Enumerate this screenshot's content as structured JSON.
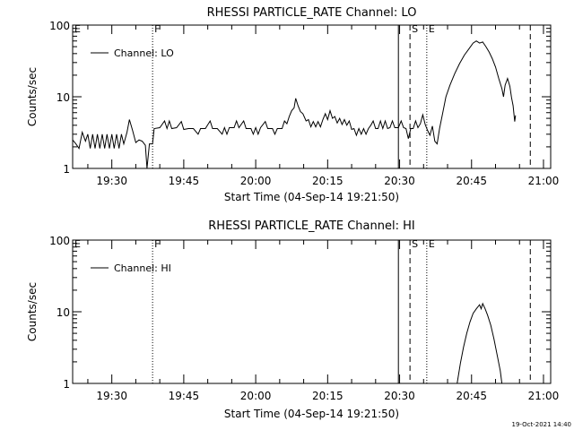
{
  "timestamp": "19-Oct-2021 14:40",
  "chart_data": [
    {
      "type": "line",
      "title": "RHESSI PARTICLE_RATE Channel: LO",
      "xlabel": "Start Time (04-Sep-14 19:21:50)",
      "ylabel": "Counts/sec",
      "y_scale": "log",
      "ylim": [
        1,
        100
      ],
      "y_ticks": [
        "1",
        "10",
        "100"
      ],
      "x_range": [
        "19:21:50",
        "21:01:30"
      ],
      "x_ticks": [
        "19:30",
        "19:45",
        "20:00",
        "20:15",
        "20:30",
        "20:45",
        "21:00"
      ],
      "legend": {
        "label": "Channel: LO",
        "position": "top-left"
      },
      "markers": [
        {
          "label": "E",
          "time": "19:21:50",
          "style": "none"
        },
        {
          "label": "F",
          "time": "19:38:30",
          "style": "dotted"
        },
        {
          "label": "",
          "time": "20:29:45",
          "style": "solid"
        },
        {
          "label": "S",
          "time": "20:32:10",
          "style": "dashed"
        },
        {
          "label": "E",
          "time": "20:35:40",
          "style": "dotted"
        },
        {
          "label": "",
          "time": "20:57:15",
          "style": "dashed"
        }
      ],
      "series": [
        {
          "name": "Channel: LO",
          "points": [
            [
              "19:21:50",
              2.5
            ],
            [
              "19:22:30",
              2.2
            ],
            [
              "19:23:10",
              1.9
            ],
            [
              "19:23:50",
              3.2
            ],
            [
              "19:24:30",
              2.4
            ],
            [
              "19:25:00",
              3.0
            ],
            [
              "19:25:30",
              1.9
            ],
            [
              "19:26:00",
              3.0
            ],
            [
              "19:26:30",
              1.9
            ],
            [
              "19:27:00",
              3.0
            ],
            [
              "19:27:30",
              1.9
            ],
            [
              "19:28:00",
              3.0
            ],
            [
              "19:28:30",
              1.9
            ],
            [
              "19:29:00",
              3.0
            ],
            [
              "19:29:30",
              1.9
            ],
            [
              "19:30:00",
              3.0
            ],
            [
              "19:30:30",
              1.9
            ],
            [
              "19:31:00",
              3.0
            ],
            [
              "19:31:30",
              1.9
            ],
            [
              "19:32:00",
              3.0
            ],
            [
              "19:32:30",
              2.2
            ],
            [
              "19:33:10",
              3.2
            ],
            [
              "19:33:40",
              4.8
            ],
            [
              "19:34:20",
              3.4
            ],
            [
              "19:35:00",
              2.3
            ],
            [
              "19:35:40",
              2.5
            ],
            [
              "19:36:20",
              2.4
            ],
            [
              "19:37:00",
              2.1
            ],
            [
              "19:37:20",
              1.0
            ],
            [
              "19:37:50",
              2.2
            ],
            [
              "19:38:30",
              2.2
            ],
            [
              "19:38:50",
              3.6
            ],
            [
              "19:40:00",
              3.7
            ],
            [
              "19:41:00",
              4.6
            ],
            [
              "19:41:30",
              3.6
            ],
            [
              "19:42:00",
              4.6
            ],
            [
              "19:42:30",
              3.6
            ],
            [
              "19:43:30",
              3.7
            ],
            [
              "19:44:30",
              4.5
            ],
            [
              "19:45:00",
              3.5
            ],
            [
              "19:46:00",
              3.6
            ],
            [
              "19:47:00",
              3.6
            ],
            [
              "19:48:00",
              3.0
            ],
            [
              "19:48:30",
              3.6
            ],
            [
              "19:49:30",
              3.6
            ],
            [
              "19:50:30",
              4.6
            ],
            [
              "19:51:00",
              3.6
            ],
            [
              "19:52:00",
              3.6
            ],
            [
              "19:53:00",
              3.0
            ],
            [
              "19:53:30",
              3.7
            ],
            [
              "19:54:00",
              3.0
            ],
            [
              "19:54:30",
              3.7
            ],
            [
              "19:55:30",
              3.7
            ],
            [
              "19:56:00",
              4.6
            ],
            [
              "19:56:30",
              3.7
            ],
            [
              "19:57:30",
              4.6
            ],
            [
              "19:58:00",
              3.6
            ],
            [
              "19:59:00",
              3.6
            ],
            [
              "19:59:30",
              3.0
            ],
            [
              "20:00:00",
              3.7
            ],
            [
              "20:00:30",
              3.0
            ],
            [
              "20:01:00",
              3.7
            ],
            [
              "20:02:00",
              4.5
            ],
            [
              "20:02:30",
              3.6
            ],
            [
              "20:03:30",
              3.6
            ],
            [
              "20:04:00",
              3.0
            ],
            [
              "20:04:30",
              3.6
            ],
            [
              "20:05:30",
              3.6
            ],
            [
              "20:06:00",
              4.6
            ],
            [
              "20:06:30",
              4.2
            ],
            [
              "20:07:00",
              5.3
            ],
            [
              "20:07:30",
              6.4
            ],
            [
              "20:08:00",
              7.0
            ],
            [
              "20:08:20",
              9.5
            ],
            [
              "20:08:50",
              7.5
            ],
            [
              "20:09:20",
              6.2
            ],
            [
              "20:09:50",
              5.8
            ],
            [
              "20:10:30",
              4.6
            ],
            [
              "20:11:00",
              4.8
            ],
            [
              "20:11:30",
              3.8
            ],
            [
              "20:12:00",
              4.5
            ],
            [
              "20:12:30",
              3.8
            ],
            [
              "20:13:00",
              4.5
            ],
            [
              "20:13:30",
              3.8
            ],
            [
              "20:14:00",
              4.8
            ],
            [
              "20:14:30",
              5.8
            ],
            [
              "20:15:00",
              4.8
            ],
            [
              "20:15:30",
              6.4
            ],
            [
              "20:16:00",
              5.0
            ],
            [
              "20:16:30",
              5.3
            ],
            [
              "20:17:00",
              4.3
            ],
            [
              "20:17:30",
              5.0
            ],
            [
              "20:18:00",
              4.1
            ],
            [
              "20:18:30",
              4.8
            ],
            [
              "20:19:00",
              4.0
            ],
            [
              "20:19:30",
              4.6
            ],
            [
              "20:20:00",
              3.5
            ],
            [
              "20:20:30",
              3.6
            ],
            [
              "20:21:00",
              2.9
            ],
            [
              "20:21:30",
              3.6
            ],
            [
              "20:22:00",
              3.0
            ],
            [
              "20:22:30",
              3.6
            ],
            [
              "20:23:00",
              3.0
            ],
            [
              "20:23:30",
              3.6
            ],
            [
              "20:24:00",
              4.0
            ],
            [
              "20:24:30",
              4.6
            ],
            [
              "20:25:00",
              3.6
            ],
            [
              "20:25:30",
              3.6
            ],
            [
              "20:26:00",
              4.6
            ],
            [
              "20:26:30",
              3.6
            ],
            [
              "20:27:00",
              4.6
            ],
            [
              "20:27:30",
              3.6
            ],
            [
              "20:28:00",
              3.7
            ],
            [
              "20:28:30",
              4.6
            ],
            [
              "20:29:00",
              3.7
            ],
            [
              "20:29:45",
              3.7
            ],
            [
              "20:30:20",
              4.6
            ],
            [
              "20:30:50",
              3.7
            ],
            [
              "20:31:20",
              3.6
            ],
            [
              "20:31:50",
              2.6
            ],
            [
              "20:32:20",
              3.6
            ],
            [
              "20:32:50",
              3.6
            ],
            [
              "20:33:20",
              4.6
            ],
            [
              "20:33:50",
              3.7
            ],
            [
              "20:34:20",
              4.2
            ],
            [
              "20:34:50",
              5.6
            ],
            [
              "20:35:20",
              4.1
            ],
            [
              "20:35:50",
              3.4
            ],
            [
              "20:36:20",
              2.9
            ],
            [
              "20:36:50",
              3.9
            ],
            [
              "20:37:20",
              2.4
            ],
            [
              "20:37:50",
              2.2
            ],
            [
              "20:38:20",
              3.6
            ],
            [
              "20:39:00",
              6.0
            ],
            [
              "20:39:40",
              10.0
            ],
            [
              "20:40:30",
              14.5
            ],
            [
              "20:41:30",
              21.0
            ],
            [
              "20:42:30",
              29.0
            ],
            [
              "20:43:30",
              38.0
            ],
            [
              "20:44:30",
              47.0
            ],
            [
              "20:45:20",
              56.0
            ],
            [
              "20:46:00",
              60.0
            ],
            [
              "20:46:40",
              56.0
            ],
            [
              "20:47:20",
              58.0
            ],
            [
              "20:48:00",
              50.0
            ],
            [
              "20:48:40",
              42.0
            ],
            [
              "20:49:20",
              34.0
            ],
            [
              "20:50:00",
              26.0
            ],
            [
              "20:50:40",
              18.0
            ],
            [
              "20:51:20",
              13.0
            ],
            [
              "20:51:40",
              10.0
            ],
            [
              "20:52:00",
              14.5
            ],
            [
              "20:52:30",
              18.0
            ],
            [
              "20:53:00",
              14.0
            ],
            [
              "20:53:20",
              9.8
            ],
            [
              "20:53:40",
              7.5
            ],
            [
              "20:54:00",
              4.5
            ],
            [
              "20:54:10",
              5.5
            ]
          ]
        }
      ]
    },
    {
      "type": "line",
      "title": "RHESSI PARTICLE_RATE Channel: HI",
      "xlabel": "Start Time (04-Sep-14 19:21:50)",
      "ylabel": "Counts/sec",
      "y_scale": "log",
      "ylim": [
        1,
        100
      ],
      "y_ticks": [
        "1",
        "10",
        "100"
      ],
      "x_range": [
        "19:21:50",
        "21:01:30"
      ],
      "x_ticks": [
        "19:30",
        "19:45",
        "20:00",
        "20:15",
        "20:30",
        "20:45",
        "21:00"
      ],
      "legend": {
        "label": "Channel: HI",
        "position": "top-left"
      },
      "markers": [
        {
          "label": "E",
          "time": "19:21:50",
          "style": "none"
        },
        {
          "label": "F",
          "time": "19:38:30",
          "style": "dotted"
        },
        {
          "label": "",
          "time": "20:29:45",
          "style": "solid"
        },
        {
          "label": "S",
          "time": "20:32:10",
          "style": "dashed"
        },
        {
          "label": "E",
          "time": "20:35:40",
          "style": "dotted"
        },
        {
          "label": "",
          "time": "20:57:15",
          "style": "dashed"
        }
      ],
      "series": [
        {
          "name": "Channel: HI",
          "points": [
            [
              "20:42:00",
              1.0
            ],
            [
              "20:42:40",
              1.9
            ],
            [
              "20:43:20",
              3.2
            ],
            [
              "20:44:00",
              5.0
            ],
            [
              "20:44:40",
              7.2
            ],
            [
              "20:45:20",
              9.5
            ],
            [
              "20:46:00",
              11.0
            ],
            [
              "20:46:40",
              12.5
            ],
            [
              "20:47:00",
              11.0
            ],
            [
              "20:47:20",
              13.0
            ],
            [
              "20:47:50",
              11.0
            ],
            [
              "20:48:20",
              9.0
            ],
            [
              "20:49:00",
              6.5
            ],
            [
              "20:49:40",
              4.2
            ],
            [
              "20:50:20",
              2.5
            ],
            [
              "20:51:00",
              1.5
            ],
            [
              "20:51:20",
              1.0
            ]
          ]
        }
      ]
    }
  ]
}
